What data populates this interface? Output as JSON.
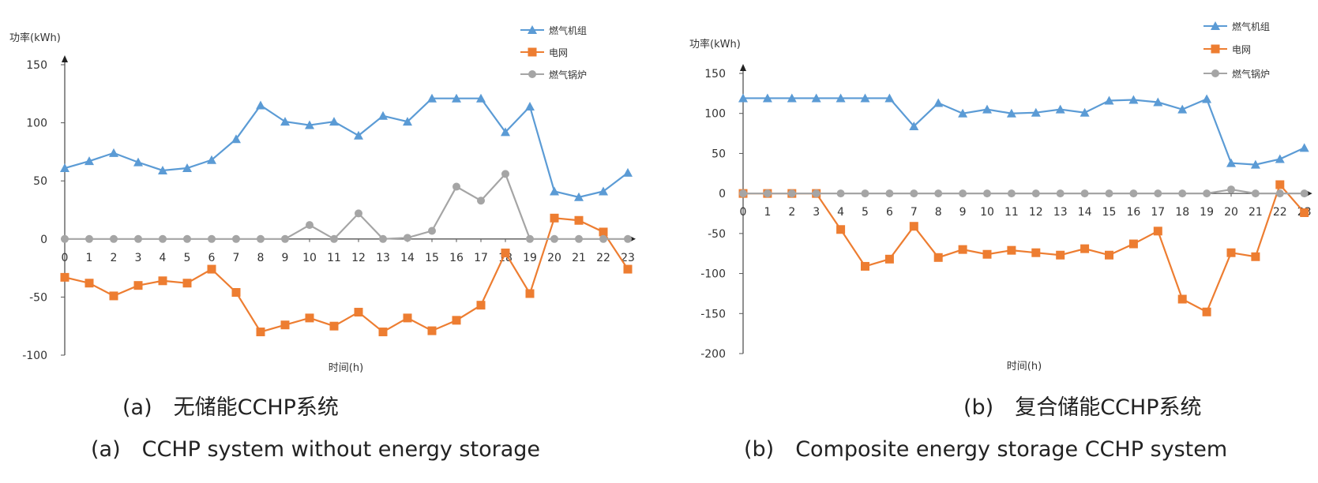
{
  "chart_data": [
    {
      "type": "line",
      "ylabel": "功率(kWh)",
      "xlabel": "时间(h)",
      "ylim": [
        -100,
        150
      ],
      "yticks": [
        150,
        100,
        50,
        0,
        -50,
        -100
      ],
      "x": [
        0,
        1,
        2,
        3,
        4,
        5,
        6,
        7,
        8,
        9,
        10,
        11,
        12,
        13,
        14,
        15,
        16,
        17,
        18,
        19,
        20,
        21,
        22,
        23
      ],
      "legend_position": "top-right",
      "series": [
        {
          "name": "燃气机组",
          "color": "#5B9BD5",
          "marker": "triangle",
          "values": [
            61,
            67,
            74,
            66,
            59,
            61,
            68,
            86,
            115,
            101,
            98,
            101,
            89,
            106,
            101,
            121,
            121,
            121,
            92,
            114,
            41,
            36,
            41,
            57
          ]
        },
        {
          "name": "电网",
          "color": "#ED7D31",
          "marker": "square",
          "values": [
            -33,
            -38,
            -49,
            -40,
            -36,
            -38,
            -26,
            -46,
            -80,
            -74,
            -68,
            -75,
            -63,
            -80,
            -68,
            -79,
            -70,
            -57,
            -12,
            -47,
            18,
            16,
            6,
            -26
          ]
        },
        {
          "name": "燃气锅炉",
          "color": "#A5A5A5",
          "marker": "circle",
          "values": [
            0,
            0,
            0,
            0,
            0,
            0,
            0,
            0,
            0,
            0,
            12,
            0,
            22,
            0,
            1,
            7,
            45,
            33,
            56,
            0,
            0,
            0,
            0,
            0
          ]
        }
      ],
      "caption_cn": "(a)　无储能CCHP系统",
      "caption_en": "(a)　CCHP system without energy storage"
    },
    {
      "type": "line",
      "ylabel": "功率(kWh)",
      "xlabel": "时间(h)",
      "ylim": [
        -200,
        150
      ],
      "yticks": [
        150,
        100,
        50,
        0,
        -50,
        -100,
        -150,
        -200
      ],
      "x": [
        0,
        1,
        2,
        3,
        4,
        5,
        6,
        7,
        8,
        9,
        10,
        11,
        12,
        13,
        14,
        15,
        16,
        17,
        18,
        19,
        20,
        21,
        22,
        23
      ],
      "legend_position": "top-right",
      "series": [
        {
          "name": "燃气机组",
          "color": "#5B9BD5",
          "marker": "triangle",
          "values": [
            119,
            119,
            119,
            119,
            119,
            119,
            119,
            84,
            113,
            100,
            105,
            100,
            101,
            105,
            101,
            116,
            117,
            114,
            105,
            118,
            38,
            36,
            43,
            57
          ]
        },
        {
          "name": "电网",
          "color": "#ED7D31",
          "marker": "square",
          "values": [
            0,
            0,
            0,
            0,
            -45,
            -91,
            -82,
            -41,
            -80,
            -70,
            -76,
            -71,
            -74,
            -77,
            -69,
            -77,
            -63,
            -47,
            -132,
            -148,
            -74,
            -79,
            11,
            -24
          ]
        },
        {
          "name": "燃气锅炉",
          "color": "#A5A5A5",
          "marker": "circle",
          "values": [
            0,
            0,
            0,
            0,
            0,
            0,
            0,
            0,
            0,
            0,
            0,
            0,
            0,
            0,
            0,
            0,
            0,
            0,
            0,
            0,
            5,
            0,
            0,
            0
          ]
        }
      ],
      "caption_cn": "(b)　复合储能CCHP系统",
      "caption_en": "(b)　Composite energy storage CCHP system"
    }
  ]
}
